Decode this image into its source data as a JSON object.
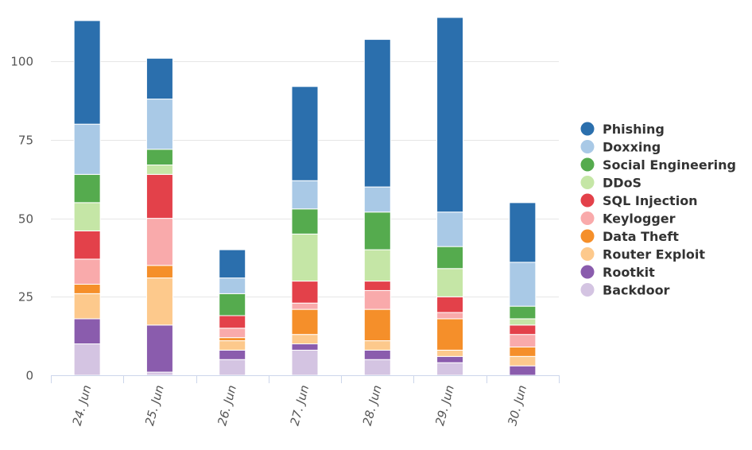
{
  "chart_data": {
    "type": "bar",
    "stacked": true,
    "categories": [
      "24. Jun",
      "25. Jun",
      "26. Jun",
      "27. Jun",
      "28. Jun",
      "29. Jun",
      "30. Jun"
    ],
    "ylim": [
      0,
      115
    ],
    "yticks": [
      0,
      25,
      50,
      75,
      100
    ],
    "grid": true,
    "legend_position": "right",
    "series": [
      {
        "name": "Backdoor",
        "color": "#d4c4e2",
        "values": [
          10,
          1,
          5,
          8,
          5,
          4,
          0
        ]
      },
      {
        "name": "Rootkit",
        "color": "#8a5cad",
        "values": [
          8,
          15,
          3,
          2,
          3,
          2,
          3
        ]
      },
      {
        "name": "Router Exploit",
        "color": "#fdc98c",
        "values": [
          8,
          15,
          3,
          3,
          3,
          2,
          3
        ]
      },
      {
        "name": "Data Theft",
        "color": "#f58f2a",
        "values": [
          3,
          4,
          1,
          8,
          10,
          10,
          3
        ]
      },
      {
        "name": "Keylogger",
        "color": "#f9aaab",
        "values": [
          8,
          15,
          3,
          2,
          6,
          2,
          4
        ]
      },
      {
        "name": "SQL Injection",
        "color": "#e3414a",
        "values": [
          9,
          14,
          4,
          7,
          3,
          5,
          3
        ]
      },
      {
        "name": "DDoS",
        "color": "#c5e6a6",
        "values": [
          9,
          3,
          0,
          15,
          10,
          9,
          2
        ]
      },
      {
        "name": "Social Engineering",
        "color": "#55ab4e",
        "values": [
          9,
          5,
          7,
          8,
          12,
          7,
          4
        ]
      },
      {
        "name": "Doxxing",
        "color": "#a9c9e6",
        "values": [
          16,
          16,
          5,
          9,
          8,
          11,
          14
        ]
      },
      {
        "name": "Phishing",
        "color": "#2b6fad",
        "values": [
          33,
          13,
          9,
          30,
          47,
          62,
          19
        ]
      }
    ]
  }
}
